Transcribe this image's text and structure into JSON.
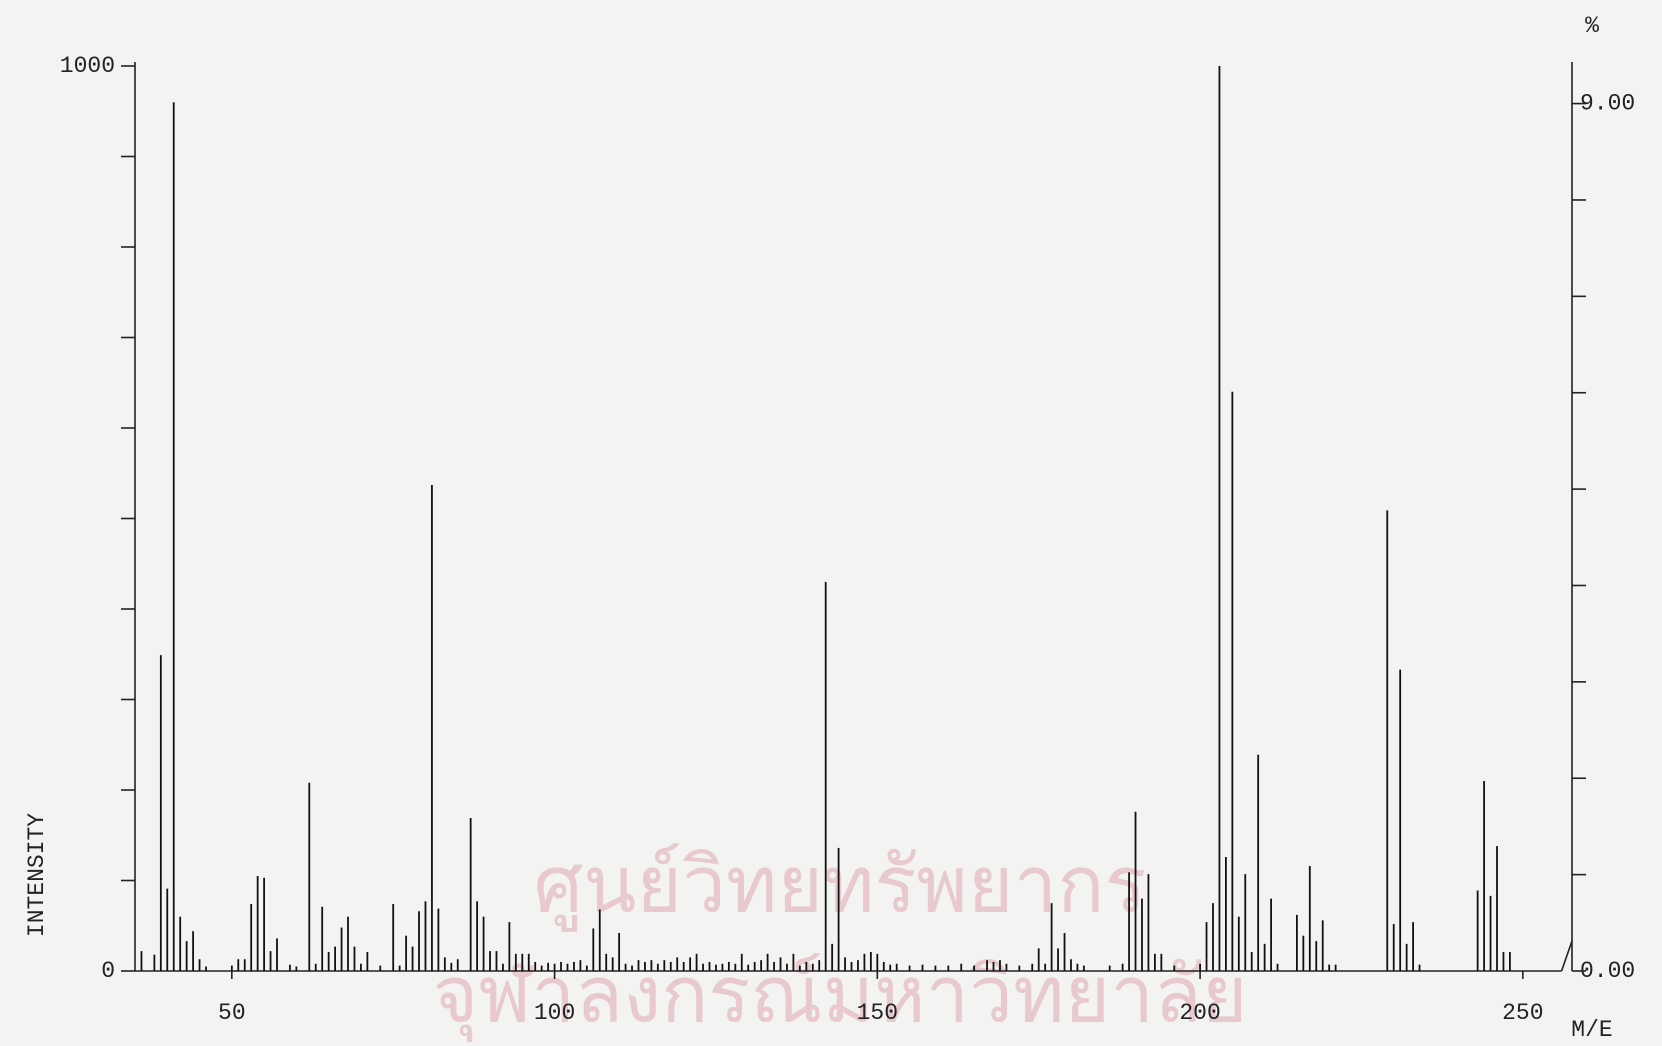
{
  "chart_data": {
    "type": "bar",
    "xlabel": "M/E",
    "ylabel": "INTENSITY",
    "y2label": "%",
    "color": "#111111",
    "x": [
      36,
      38,
      39,
      40,
      41,
      42,
      43,
      44,
      45,
      46,
      50,
      51,
      52,
      53,
      54,
      55,
      56,
      57,
      59,
      60,
      62,
      63,
      64,
      65,
      66,
      67,
      68,
      69,
      70,
      71,
      73,
      75,
      76,
      77,
      78,
      79,
      80,
      81,
      82,
      83,
      84,
      85,
      87,
      88,
      89,
      90,
      91,
      92,
      93,
      94,
      95,
      96,
      97,
      98,
      99,
      100,
      101,
      102,
      103,
      104,
      105,
      106,
      107,
      108,
      109,
      110,
      111,
      112,
      113,
      114,
      115,
      116,
      117,
      118,
      119,
      120,
      121,
      122,
      123,
      124,
      125,
      126,
      127,
      128,
      129,
      130,
      131,
      132,
      133,
      134,
      135,
      136,
      137,
      138,
      139,
      140,
      141,
      142,
      143,
      144,
      145,
      146,
      147,
      148,
      149,
      150,
      151,
      152,
      153,
      155,
      157,
      159,
      161,
      163,
      165,
      167,
      168,
      169,
      170,
      172,
      174,
      175,
      176,
      177,
      178,
      179,
      180,
      181,
      182,
      186,
      188,
      189,
      190,
      191,
      192,
      193,
      194,
      196,
      200,
      201,
      202,
      203,
      204,
      205,
      206,
      207,
      208,
      209,
      210,
      211,
      212,
      215,
      216,
      217,
      218,
      219,
      220,
      221,
      229,
      230,
      231,
      232,
      233,
      234,
      243,
      244,
      245,
      246,
      247,
      248
    ],
    "values": [
      22,
      18,
      349,
      91,
      960,
      60,
      33,
      44,
      13,
      5,
      6,
      13,
      13,
      74,
      105,
      103,
      22,
      36,
      7,
      5,
      208,
      8,
      71,
      21,
      27,
      48,
      60,
      27,
      8,
      21,
      6,
      74,
      6,
      39,
      27,
      66,
      77,
      537,
      69,
      15,
      9,
      13,
      169,
      77,
      60,
      22,
      22,
      8,
      54,
      19,
      19,
      19,
      10,
      6,
      9,
      8,
      10,
      8,
      10,
      12,
      6,
      47,
      68,
      19,
      15,
      42,
      8,
      6,
      12,
      10,
      12,
      8,
      12,
      10,
      15,
      10,
      15,
      19,
      8,
      10,
      7,
      8,
      10,
      8,
      19,
      7,
      10,
      12,
      19,
      10,
      15,
      8,
      19,
      6,
      10,
      8,
      12,
      430,
      30,
      136,
      15,
      10,
      12,
      19,
      21,
      19,
      10,
      7,
      8,
      6,
      7,
      6,
      6,
      8,
      6,
      12,
      10,
      12,
      8,
      6,
      8,
      25,
      8,
      75,
      25,
      42,
      13,
      8,
      6,
      6,
      8,
      109,
      176,
      80,
      107,
      19,
      19,
      6,
      8,
      54,
      75,
      1000,
      126,
      640,
      60,
      107,
      21,
      239,
      30,
      80,
      8,
      62,
      39,
      116,
      33,
      56,
      7,
      7,
      509,
      52,
      333,
      30,
      54,
      7,
      89,
      210,
      83,
      138,
      21,
      21
    ],
    "xlim": [
      35,
      256
    ],
    "xticks": [
      50,
      100,
      150,
      200,
      250
    ],
    "ylim": [
      0,
      1000
    ],
    "yticks": [
      0,
      1000
    ],
    "yticks_minor": [
      100,
      200,
      300,
      400,
      500,
      600,
      700,
      800,
      900
    ],
    "y2lim": [
      0,
      9.39
    ],
    "y2ticks": [
      {
        "value": 0,
        "label": "0.00"
      },
      {
        "value": 9,
        "label": "9.00"
      }
    ],
    "y2ticks_minor": [
      1,
      2,
      3,
      4,
      5,
      6,
      7,
      8
    ]
  },
  "watermark": [
    "ศูนย์วิทยทรัพยากร",
    "จุฬาลงกรณ์มหาวิทยาลัย"
  ]
}
